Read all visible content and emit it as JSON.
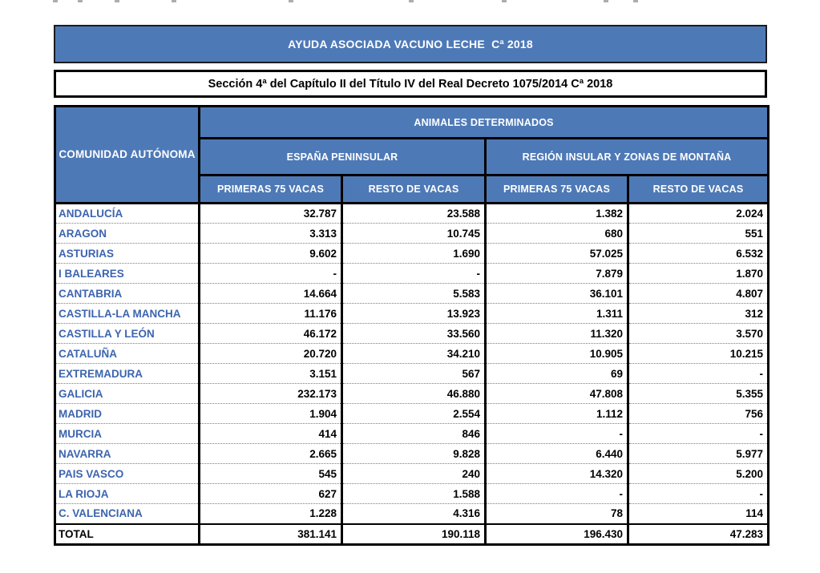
{
  "page": {
    "title_bar": "AYUDA ASOCIADA VACUNO LECHE  Cª 2018",
    "subtitle_bar": "Sección 4ª del Capítulo II del Título IV del Real Decreto 1075/2014 Cª 2018"
  },
  "colors": {
    "header_blue": "#4e79b7",
    "row_label_blue": "#3c64af",
    "border_black": "#000000",
    "dotted_separator_gray": "#7d7d7d"
  },
  "table": {
    "corner_header": "COMUNIDAD AUTÓNOMA",
    "group_header": "ANIMALES DETERMINADOS",
    "subgroup_headers": [
      "ESPAÑA PENINSULAR",
      "REGIÓN INSULAR Y ZONAS DE MONTAÑA"
    ],
    "column_headers": [
      "PRIMERAS 75 VACAS",
      "RESTO DE VACAS",
      "PRIMERAS 75 VACAS",
      "RESTO DE VACAS"
    ],
    "rows": [
      {
        "name": "ANDALUCÍA",
        "values": [
          "32.787",
          "23.588",
          "1.382",
          "2.024"
        ]
      },
      {
        "name": "ARAGON",
        "values": [
          "3.313",
          "10.745",
          "680",
          "551"
        ]
      },
      {
        "name": "ASTURIAS",
        "values": [
          "9.602",
          "1.690",
          "57.025",
          "6.532"
        ]
      },
      {
        "name": "I BALEARES",
        "values": [
          "-",
          "-",
          "7.879",
          "1.870"
        ]
      },
      {
        "name": "CANTABRIA",
        "values": [
          "14.664",
          "5.583",
          "36.101",
          "4.807"
        ]
      },
      {
        "name": "CASTILLA-LA MANCHA",
        "values": [
          "11.176",
          "13.923",
          "1.311",
          "312"
        ]
      },
      {
        "name": "CASTILLA Y LEÓN",
        "values": [
          "46.172",
          "33.560",
          "11.320",
          "3.570"
        ]
      },
      {
        "name": "CATALUÑA",
        "values": [
          "20.720",
          "34.210",
          "10.905",
          "10.215"
        ]
      },
      {
        "name": "EXTREMADURA",
        "values": [
          "3.151",
          "567",
          "69",
          "-"
        ]
      },
      {
        "name": "GALICIA",
        "values": [
          "232.173",
          "46.880",
          "47.808",
          "5.355"
        ]
      },
      {
        "name": "MADRID",
        "values": [
          "1.904",
          "2.554",
          "1.112",
          "756"
        ]
      },
      {
        "name": "MURCIA",
        "values": [
          "414",
          "846",
          "-",
          "-"
        ]
      },
      {
        "name": "NAVARRA",
        "values": [
          "2.665",
          "9.828",
          "6.440",
          "5.977"
        ]
      },
      {
        "name": "PAIS VASCO",
        "values": [
          "545",
          "240",
          "14.320",
          "5.200"
        ]
      },
      {
        "name": "LA RIOJA",
        "values": [
          "627",
          "1.588",
          "-",
          "-"
        ]
      },
      {
        "name": "C. VALENCIANA",
        "values": [
          "1.228",
          "4.316",
          "78",
          "114"
        ]
      }
    ],
    "total": {
      "name": "TOTAL",
      "values": [
        "381.141",
        "190.118",
        "196.430",
        "47.283"
      ]
    }
  }
}
